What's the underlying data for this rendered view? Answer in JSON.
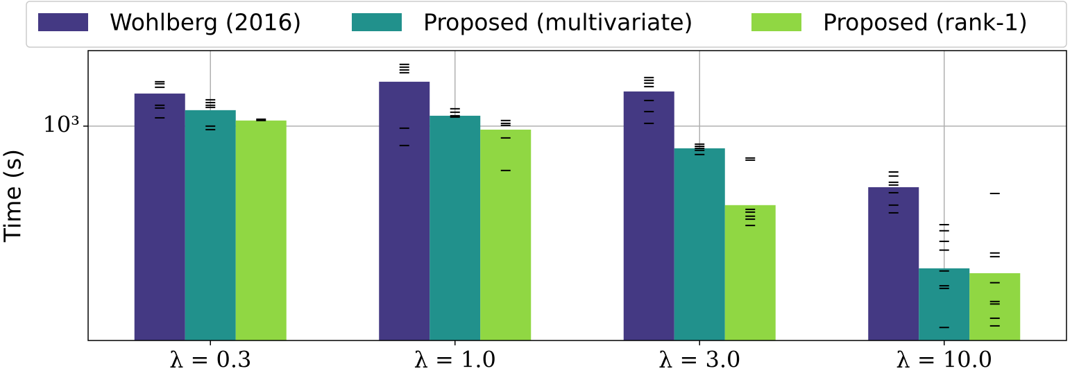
{
  "chart_data": {
    "type": "bar",
    "y_label": "Time (s)",
    "log_y": true,
    "grid": true,
    "legend": "top",
    "categories": [
      "λ = 0.3",
      "λ = 1.0",
      "λ = 3.0",
      "λ = 10.0"
    ],
    "ylim": [
      100,
      2250
    ],
    "yticks": [
      {
        "value": 1000,
        "label": "10³"
      }
    ],
    "series": [
      {
        "name": "Wohlberg (2016)",
        "color": "#443983",
        "values": [
          1419,
          1611,
          1451,
          519
        ],
        "runs": [
          [
            1611,
            1576,
            1518,
            1251,
            1214,
            1093
          ],
          [
            1941,
            1884,
            1829,
            1775,
            978,
            812
          ],
          [
            1685,
            1636,
            1587,
            1529,
            1317,
            1169,
            1030
          ],
          [
            611,
            585,
            547,
            531,
            489,
            428,
            394
          ]
        ]
      },
      {
        "name": "Proposed (multivariate)",
        "color": "#21918c",
        "values": [
          1187,
          1118,
          788,
          217
        ],
        "runs": [
          [
            1327,
            1288,
            1251,
            1223,
            1000,
            963
          ],
          [
            1205,
            1161,
            1118,
            1102
          ],
          [
            824,
            805,
            788,
            771,
            737
          ],
          [
            347,
            325,
            290,
            264,
            211,
            180,
            175,
            115
          ]
        ]
      },
      {
        "name": "Proposed (rank-1)",
        "color": "#90d743",
        "values": [
          1062,
          963,
          428,
          206
        ],
        "runs": [
          [
            1077,
            1062
          ],
          [
            1062,
            1030,
            1008,
            881,
            621
          ],
          [
            710,
            694,
            409,
            397,
            380,
            368,
            344
          ],
          [
            485,
            256,
            246,
            186,
            152,
            148,
            127,
            117
          ]
        ]
      }
    ]
  }
}
